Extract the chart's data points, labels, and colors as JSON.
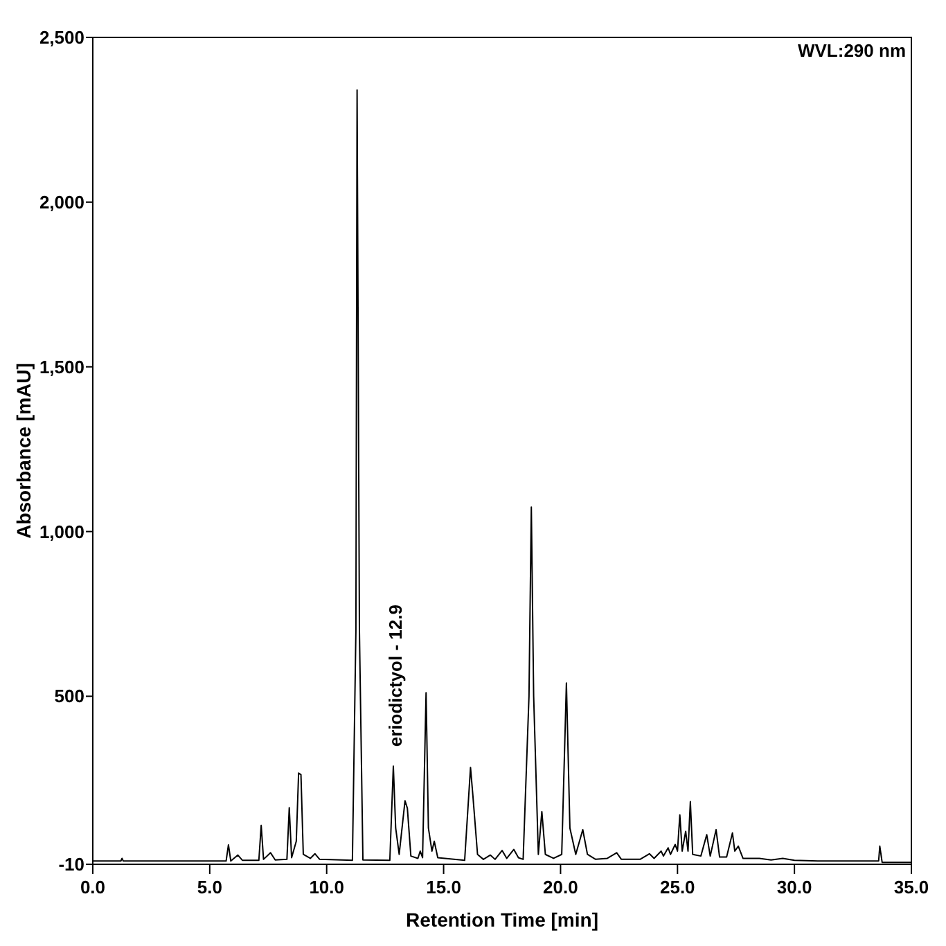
{
  "chart_data": {
    "type": "line",
    "xlabel": "Retention Time [min]",
    "ylabel": "Absorbance [mAU]",
    "annotations": [
      {
        "text": "eriodictyol - 12.9",
        "x": 12.9,
        "y": 288
      },
      "WVL:290 nm"
    ],
    "xlim": [
      0,
      35
    ],
    "ylim": [
      -10,
      2500
    ],
    "xticks": [
      {
        "value": 0,
        "label": "0.0"
      },
      {
        "value": 5,
        "label": "5.0"
      },
      {
        "value": 10,
        "label": "10.0"
      },
      {
        "value": 15,
        "label": "15.0"
      },
      {
        "value": 20,
        "label": "20.0"
      },
      {
        "value": 25,
        "label": "25.0"
      },
      {
        "value": 30,
        "label": "30.0"
      },
      {
        "value": 35,
        "label": "35.0"
      }
    ],
    "yticks": [
      -10,
      500,
      {
        "value": 1000,
        "label": "1,000"
      },
      {
        "value": 1500,
        "label": "1,500"
      },
      {
        "value": 2000,
        "label": "2,000"
      },
      {
        "value": 2500,
        "label": "2,500"
      }
    ],
    "marker": "none",
    "line_style": "solid",
    "series": [
      {
        "color": "#000000",
        "x": [
          0,
          1.2,
          1.25,
          1.3,
          5.0,
          5.7,
          5.8,
          5.9,
          6.2,
          6.4,
          7.1,
          7.2,
          7.3,
          7.6,
          7.8,
          8.3,
          8.4,
          8.5,
          8.7,
          8.8,
          8.9,
          9.0,
          9.3,
          9.5,
          9.7,
          11.1,
          11.25,
          11.3,
          11.4,
          11.55,
          12.7,
          12.85,
          12.95,
          13.1,
          13.35,
          13.45,
          13.6,
          13.9,
          14.0,
          14.1,
          14.25,
          14.35,
          14.5,
          14.6,
          14.75,
          15.9,
          16.15,
          16.25,
          16.45,
          16.7,
          17.0,
          17.2,
          17.5,
          17.7,
          18.0,
          18.2,
          18.4,
          18.65,
          18.75,
          18.85,
          19.05,
          19.2,
          19.35,
          19.7,
          20.05,
          20.25,
          20.4,
          20.65,
          20.95,
          21.15,
          21.5,
          22.0,
          22.4,
          22.6,
          23.4,
          23.8,
          24.0,
          24.3,
          24.4,
          24.6,
          24.7,
          24.9,
          25.0,
          25.1,
          25.2,
          25.35,
          25.45,
          25.55,
          25.65,
          26.0,
          26.25,
          26.4,
          26.65,
          26.8,
          27.1,
          27.35,
          27.45,
          27.6,
          27.8,
          28.5,
          29.0,
          29.5,
          30.0,
          31.0,
          33.6,
          33.65,
          33.75,
          35.0
        ],
        "values": [
          0,
          0,
          8,
          0,
          0,
          0,
          49,
          0,
          18,
          2,
          2,
          108,
          5,
          25,
          3,
          5,
          162,
          10,
          60,
          267,
          262,
          20,
          8,
          22,
          5,
          2,
          700,
          2340,
          700,
          3,
          2,
          288,
          100,
          20,
          183,
          160,
          15,
          8,
          30,
          10,
          511,
          100,
          30,
          60,
          10,
          2,
          284,
          200,
          20,
          5,
          18,
          5,
          32,
          8,
          35,
          10,
          5,
          500,
          1074,
          500,
          20,
          150,
          20,
          8,
          20,
          540,
          100,
          20,
          95,
          20,
          5,
          8,
          25,
          5,
          5,
          22,
          8,
          30,
          15,
          40,
          20,
          50,
          30,
          140,
          30,
          90,
          30,
          180,
          20,
          15,
          80,
          15,
          95,
          12,
          12,
          85,
          30,
          45,
          8,
          8,
          3,
          8,
          2,
          0,
          0,
          45,
          -4,
          -4
        ]
      }
    ]
  }
}
